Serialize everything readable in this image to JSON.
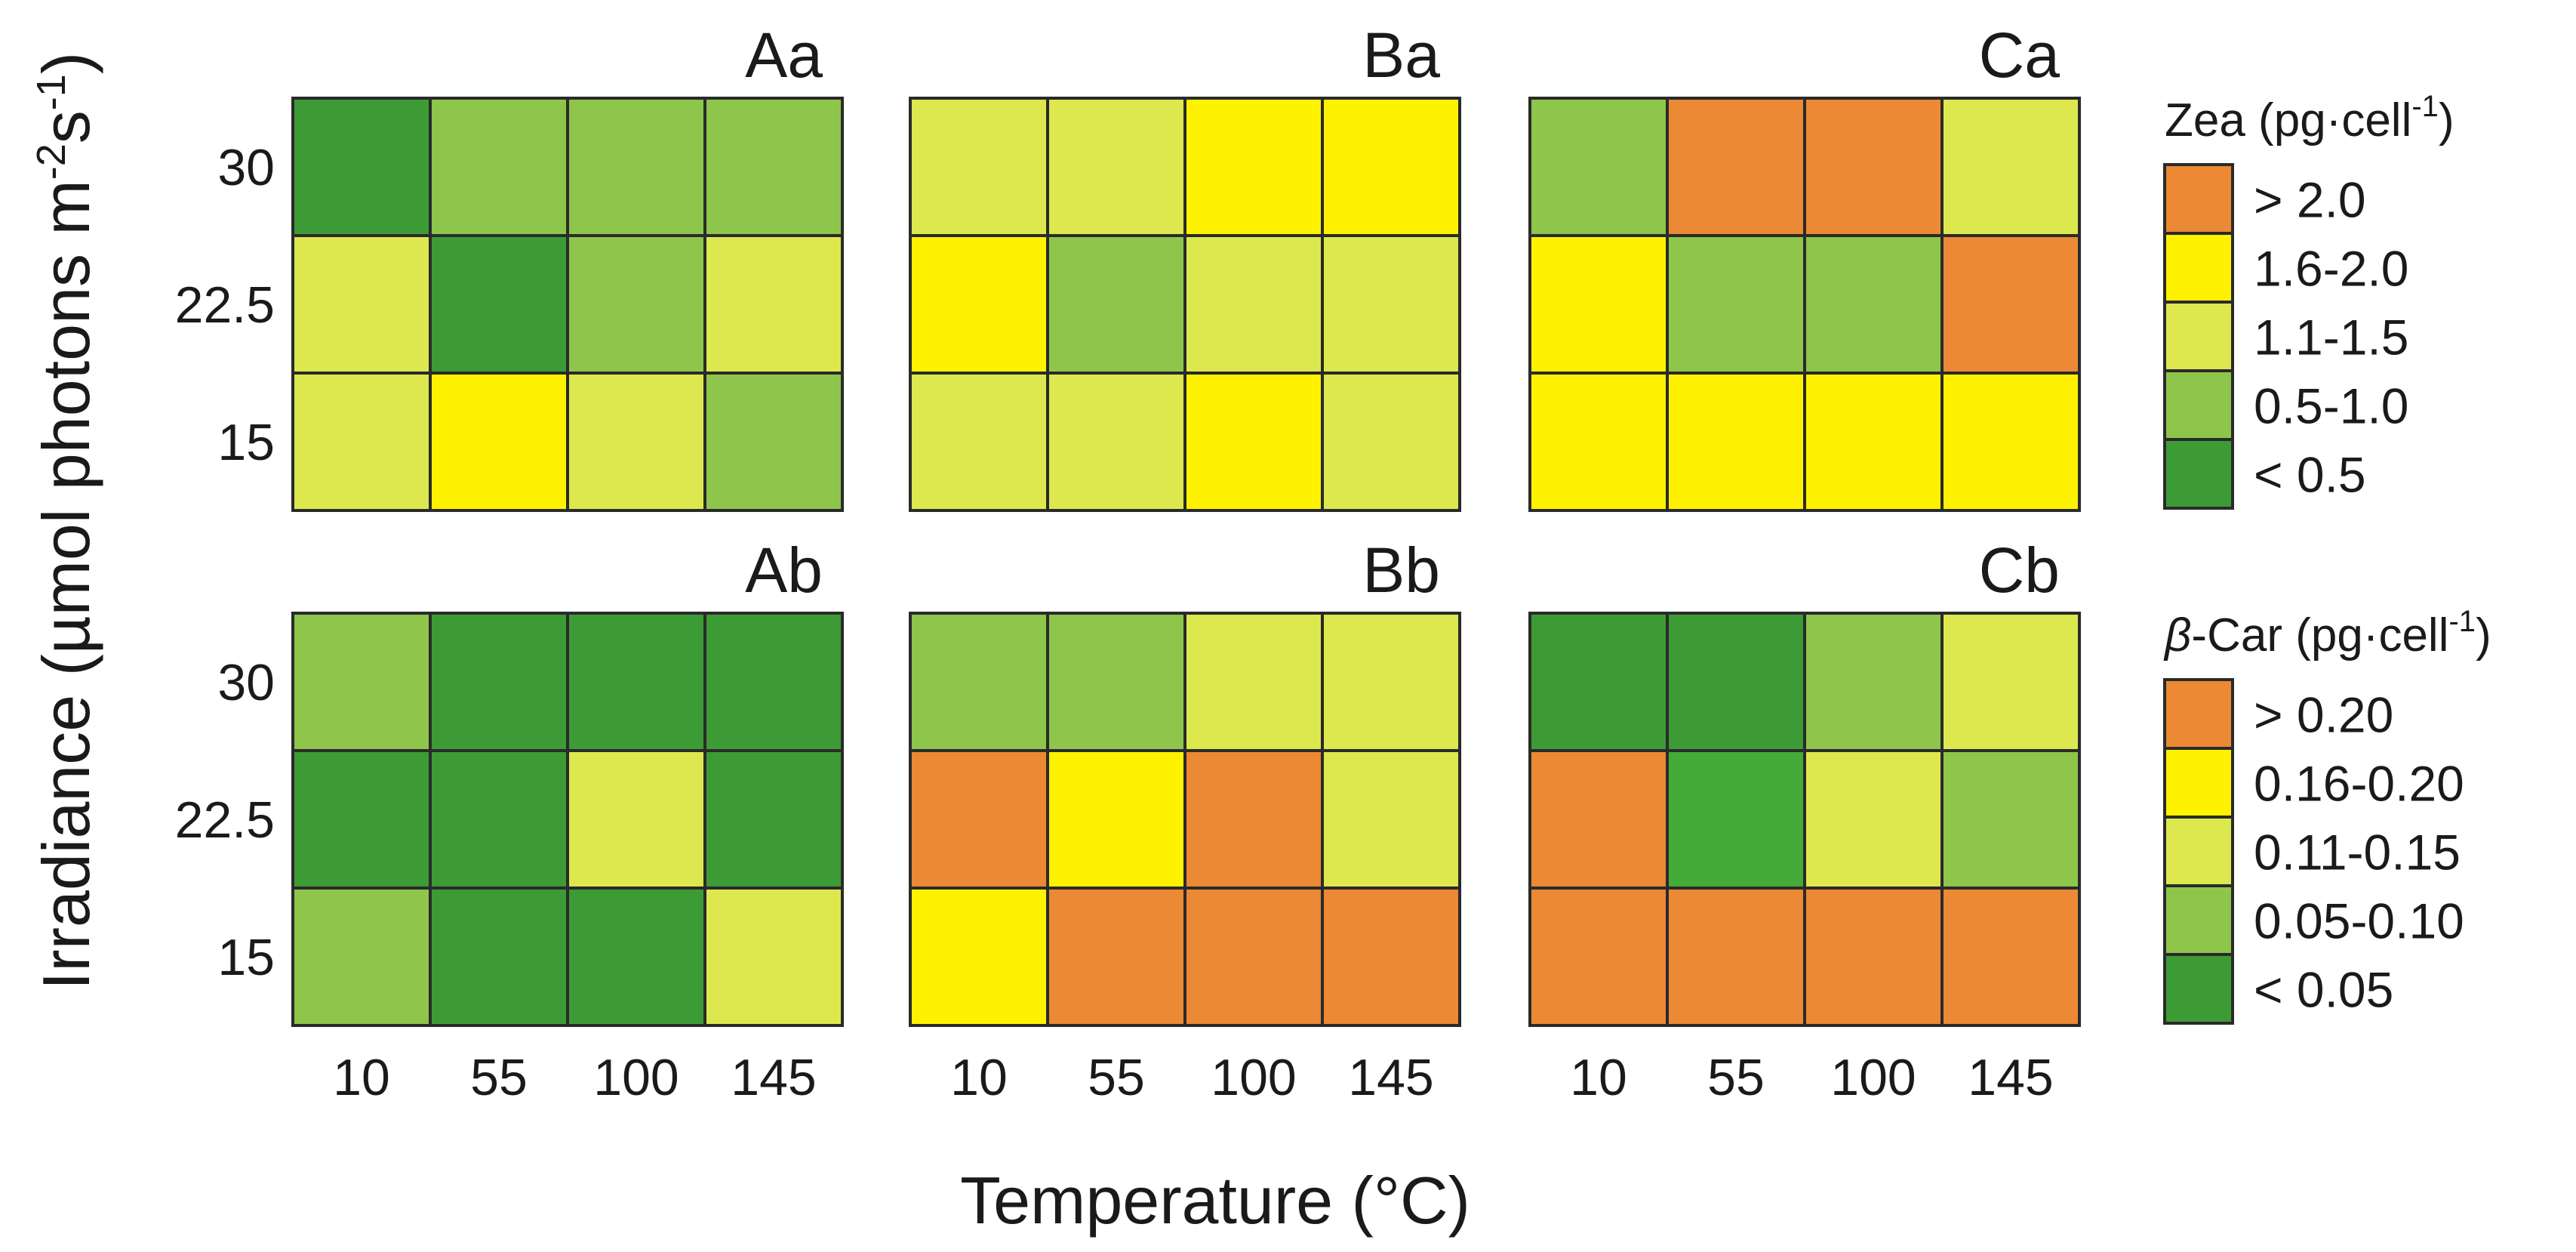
{
  "colors": {
    "dark_green": "#3d9b35",
    "medium_green": "#44aa38",
    "light_green": "#8dc64b",
    "yellow_green": "#dde84f",
    "yellow": "#fff200",
    "orange": "#eb8934",
    "grid_stroke": "#2a2a2a"
  },
  "chart_data": {
    "type": "heatmap",
    "xlabel": "Temperature (°C)",
    "ylabel": "Irradiance (µmol photons m-2s-1)",
    "ylabel_parts": {
      "main": "Irradiance (µmol photons m",
      "sup1": "-2",
      "mid": "s",
      "sup2": "-1",
      "end": ")"
    },
    "x_categories": [
      "10",
      "55",
      "100",
      "145"
    ],
    "y_categories": [
      "30",
      "22.5",
      "15"
    ],
    "panels": [
      {
        "id": "Aa",
        "row": 0,
        "col": 0,
        "legend": "zea",
        "cells": [
          [
            "<0.5",
            "0.5-1.0",
            "0.5-1.0",
            "0.5-1.0"
          ],
          [
            "1.1-1.5",
            "<0.5",
            "0.5-1.0",
            "1.1-1.5"
          ],
          [
            "1.1-1.5",
            "1.6-2.0",
            "1.1-1.5",
            "0.5-1.0"
          ]
        ]
      },
      {
        "id": "Ba",
        "row": 0,
        "col": 1,
        "legend": "zea",
        "cells": [
          [
            "1.1-1.5",
            "1.1-1.5",
            "1.6-2.0",
            "1.6-2.0"
          ],
          [
            "1.6-2.0",
            "0.5-1.0",
            "1.1-1.5",
            "1.1-1.5"
          ],
          [
            "1.1-1.5",
            "1.1-1.5",
            "1.6-2.0",
            "1.1-1.5"
          ]
        ]
      },
      {
        "id": "Ca",
        "row": 0,
        "col": 2,
        "legend": "zea",
        "cells": [
          [
            "0.5-1.0",
            ">2.0",
            ">2.0",
            "1.1-1.5"
          ],
          [
            "1.6-2.0",
            "0.5-1.0",
            "0.5-1.0",
            ">2.0"
          ],
          [
            "1.6-2.0",
            "1.6-2.0",
            "1.6-2.0",
            "1.6-2.0"
          ]
        ]
      },
      {
        "id": "Ab",
        "row": 1,
        "col": 0,
        "legend": "bcar",
        "cells": [
          [
            "0.05-0.10",
            "<0.05",
            "<0.05",
            "<0.05"
          ],
          [
            "<0.05",
            "<0.05",
            "0.11-0.15",
            "<0.05"
          ],
          [
            "0.05-0.10",
            "<0.05",
            "<0.05",
            "0.11-0.15"
          ]
        ]
      },
      {
        "id": "Bb",
        "row": 1,
        "col": 1,
        "legend": "bcar",
        "cells": [
          [
            "0.05-0.10",
            "0.05-0.10",
            "0.11-0.15",
            "0.11-0.15"
          ],
          [
            ">0.20",
            "0.16-0.20",
            ">0.20",
            "0.11-0.15"
          ],
          [
            "0.16-0.20",
            ">0.20",
            ">0.20",
            ">0.20"
          ]
        ]
      },
      {
        "id": "Cb",
        "row": 1,
        "col": 2,
        "legend": "bcar",
        "cells": [
          [
            "<0.05",
            "<0.05",
            "0.05-0.10",
            "0.11-0.15"
          ],
          [
            ">0.20",
            "<0.05*",
            "0.11-0.15",
            "0.05-0.10"
          ],
          [
            ">0.20",
            ">0.20",
            ">0.20",
            ">0.20"
          ]
        ]
      }
    ],
    "legends": {
      "zea": {
        "title_main": "Zea (pg·cell",
        "title_sup": "-1",
        "title_end": ")",
        "items": [
          {
            "key": ">2.0",
            "label": "> 2.0",
            "color": "#eb8934"
          },
          {
            "key": "1.6-2.0",
            "label": "1.6-2.0",
            "color": "#fff200"
          },
          {
            "key": "1.1-1.5",
            "label": "1.1-1.5",
            "color": "#dde84f"
          },
          {
            "key": "0.5-1.0",
            "label": "0.5-1.0",
            "color": "#8dc64b"
          },
          {
            "key": "<0.5",
            "label": "< 0.5",
            "color": "#3d9b35"
          }
        ]
      },
      "bcar": {
        "title_greek": "β",
        "title_main": "-Car (pg·cell",
        "title_sup": "-1",
        "title_end": ")",
        "items": [
          {
            "key": ">0.20",
            "label": "> 0.20",
            "color": "#eb8934"
          },
          {
            "key": "0.16-0.20",
            "label": "0.16-0.20",
            "color": "#fff200"
          },
          {
            "key": "0.11-0.15",
            "label": "0.11-0.15",
            "color": "#dde84f"
          },
          {
            "key": "0.05-0.10",
            "label": "0.05-0.10",
            "color": "#8dc64b"
          },
          {
            "key": "<0.05",
            "label": "< 0.05",
            "color": "#3d9b35"
          }
        ]
      }
    },
    "special_colors": {
      "<0.05*": "#44aa38"
    }
  }
}
